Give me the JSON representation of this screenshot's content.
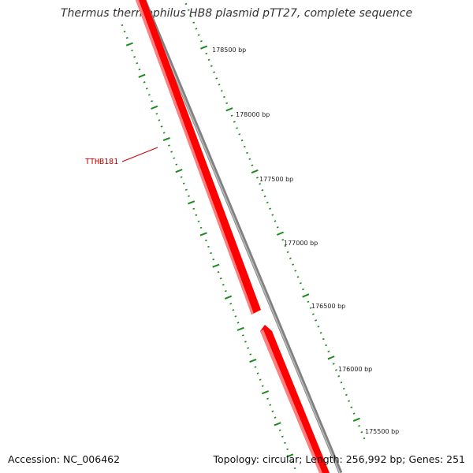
{
  "title": "Thermus thermophilus HB8 plasmid pTT27, complete sequence",
  "accession": "Accession: NC_006462",
  "topology": "Topology: circular; Length: 256,992 bp; Genes: 251",
  "colors": {
    "gene": "#ff0000",
    "gene_highlight": "#ff7a7a",
    "backbone": "#808080",
    "tick": "#1a8a1a",
    "gene_label": "#cc0000"
  },
  "ruler": {
    "labels": [
      "178500 bp",
      "178000 bp",
      "177500 bp",
      "177000 bp",
      "176500 bp",
      "176000 bp",
      "175500 bp"
    ]
  },
  "genes": [
    {
      "label": "TTHB181"
    }
  ]
}
